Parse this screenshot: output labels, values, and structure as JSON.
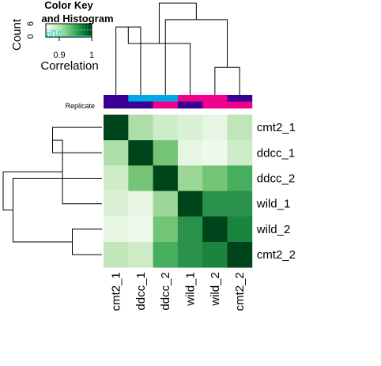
{
  "chart_data": {
    "type": "heatmap",
    "rows": [
      "cmt2_1",
      "ddcc_1",
      "ddcc_2",
      "wild_1",
      "wild_2",
      "cmt2_2"
    ],
    "columns": [
      "cmt2_1",
      "ddcc_1",
      "ddcc_2",
      "wild_1",
      "wild_2",
      "cmt2_2"
    ],
    "values": [
      [
        1.0,
        0.88,
        0.86,
        0.85,
        0.84,
        0.87
      ],
      [
        0.88,
        1.0,
        0.91,
        0.84,
        0.83,
        0.86
      ],
      [
        0.86,
        0.91,
        1.0,
        0.89,
        0.91,
        0.93
      ],
      [
        0.85,
        0.84,
        0.89,
        1.0,
        0.95,
        0.95
      ],
      [
        0.84,
        0.83,
        0.91,
        0.95,
        1.0,
        0.96
      ],
      [
        0.87,
        0.86,
        0.93,
        0.95,
        0.96,
        1.0
      ]
    ],
    "color_range": [
      0.82,
      1.0
    ],
    "color_low": "#f7fcf5",
    "color_high": "#00441b",
    "annotation_label": "Replicate",
    "annotation_tracks": [
      [
        "#3a0095",
        "#00a8e6",
        "#00a8e6",
        "#f0008c",
        "#f0008c",
        "#3a0095"
      ],
      [
        "#3a0095",
        "#3a0095",
        "#f0008c",
        "#3a0095",
        "#f0008c",
        "#f0008c"
      ]
    ],
    "color_key": {
      "title_line1": "Color Key",
      "title_line2": "and Histogram",
      "ylabel": "Count",
      "xlabel": "Correlation",
      "x_ticks": [
        "0.9",
        "1"
      ],
      "y_ticks": [
        "0",
        "6"
      ],
      "histogram_color": "#40e0d0"
    },
    "column_dendrogram": [
      {
        "a": 0,
        "b": 1,
        "h": 0.74
      },
      {
        "a": 4,
        "b": 5,
        "h": 0.3
      },
      {
        "a": 3,
        "b": 6,
        "h": 0.56
      },
      {
        "a": 2,
        "b": 7,
        "h": 0.82
      },
      {
        "a": 8,
        "b": 9,
        "h": 1.0
      }
    ],
    "row_dendrogram": [
      {
        "a": 0,
        "b": 1,
        "h": 0.5
      },
      {
        "a": 4,
        "b": 5,
        "h": 0.3
      },
      {
        "a": 3,
        "b": 6,
        "h": 0.4
      },
      {
        "a": 2,
        "b": 7,
        "h": 0.9
      },
      {
        "a": 8,
        "b": 9,
        "h": 1.0
      }
    ]
  }
}
